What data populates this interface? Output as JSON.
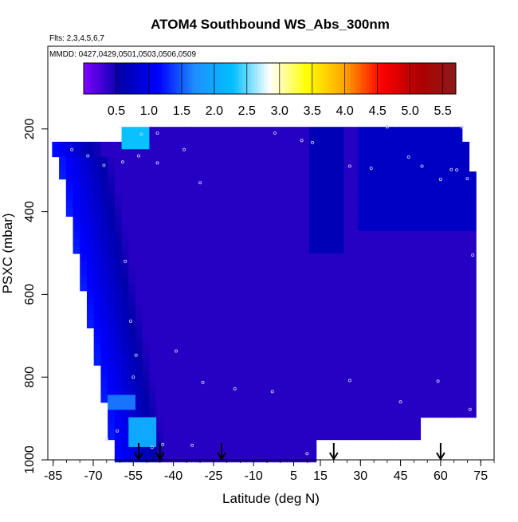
{
  "chart_data": {
    "type": "heatmap",
    "title": "ATOM4 Southbound WS_Abs_300nm",
    "subtitle_flights": "Flts: 2,3,4,5,6,7",
    "subtitle_dates": "MMDD: 0427,0429,0501,0503,0506,0509",
    "xlabel": "Latitude (deg N)",
    "ylabel": "PSXC (mbar)",
    "x_ticks": [
      "-85",
      "-70",
      "-55",
      "-40",
      "-25",
      "-10",
      "5",
      "15",
      "30",
      "45",
      "60",
      "75"
    ],
    "y_ticks": [
      "200",
      "400",
      "600",
      "800",
      "1000"
    ],
    "xlim": [
      -87,
      80
    ],
    "ylim": [
      1000,
      0
    ],
    "y_reversed": true,
    "colorbar": {
      "ticks": [
        "0.5",
        "1.0",
        "1.5",
        "2.0",
        "2.5",
        "3.0",
        "3.5",
        "4.0",
        "4.5",
        "5.0",
        "5.5"
      ],
      "range": [
        0.0,
        5.7
      ],
      "colors": [
        "#8000ff",
        "#0000aa",
        "#0000ff",
        "#1e90ff",
        "#00bfff",
        "#ffffff",
        "#ffff00",
        "#ffa500",
        "#ff0000",
        "#b00000",
        "#8b1a1a"
      ]
    },
    "arrow_latitudes": [
      -53,
      -45,
      -22,
      20,
      60
    ],
    "upper_cut_latitude": -48,
    "lon_extent": [
      -72,
      72
    ],
    "level_extent": [
      195,
      1000
    ],
    "notable_features": [
      {
        "label": "high-latitude upper enhancement",
        "lat": [
          -60,
          -50
        ],
        "psxc": [
          195,
          240
        ],
        "value": 2.3
      },
      {
        "label": "southern boundary layer enhancement",
        "lat": [
          -57,
          -47
        ],
        "psxc": [
          900,
          960
        ],
        "value": 2.0
      },
      {
        "label": "southern mid-lower enhancement",
        "lat": [
          -65,
          -55
        ],
        "psxc": [
          840,
          880
        ],
        "value": 1.6
      }
    ],
    "background_value": 0.4
  }
}
